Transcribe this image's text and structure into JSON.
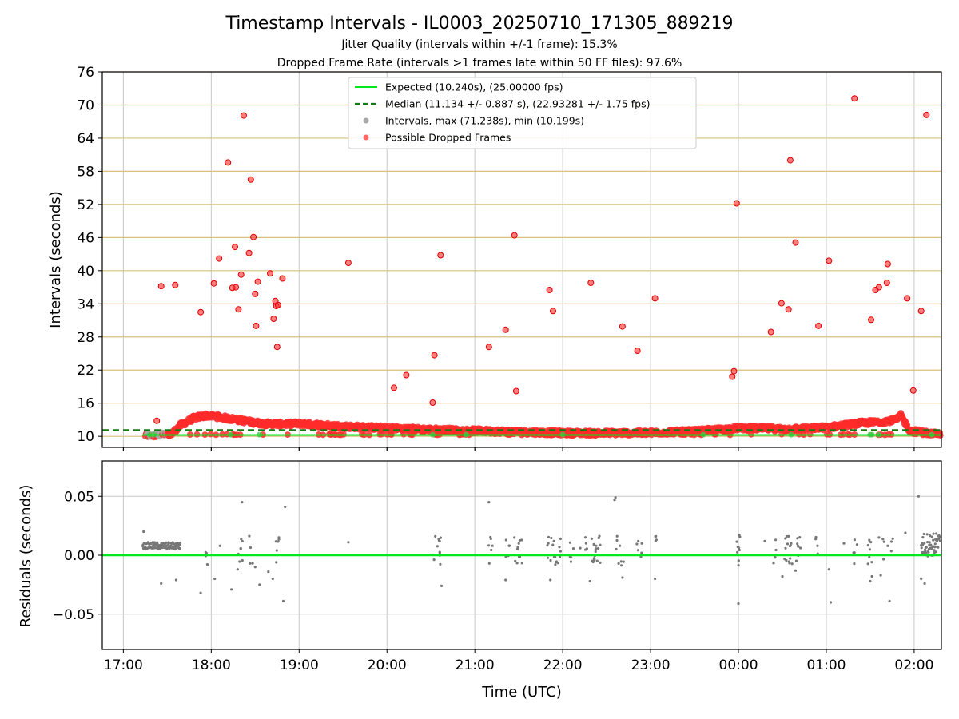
{
  "chart_data": [
    {
      "type": "scatter",
      "panel": "top",
      "title": "Timestamp Intervals - IL0003_20250710_171305_889219",
      "subtitle_1": "Jitter Quality (intervals within +/-1 frame): 15.3%",
      "subtitle_2": "Dropped Frame Rate (intervals >1 frames late within 50 FF files): 97.6%",
      "xlabel": "",
      "ylabel": "Intervals (seconds)",
      "xlim_hours": [
        16.76,
        26.31
      ],
      "ylim": [
        8,
        76
      ],
      "yticks": [
        10,
        16,
        22,
        28,
        34,
        40,
        46,
        52,
        58,
        64,
        70,
        76
      ],
      "xticks": [
        "17:00",
        "18:00",
        "19:00",
        "20:00",
        "21:00",
        "22:00",
        "23:00",
        "00:00",
        "01:00",
        "02:00"
      ],
      "grid": true,
      "legend_position": "upper-center",
      "legend": [
        "Expected (10.240s), (25.00000 fps)",
        "Median (11.134 +/- 0.887 s), (22.93281 +/- 1.75 fps)",
        "Intervals, max (71.238s), min (10.199s)",
        "Possible Dropped Frames"
      ],
      "expected_value": 10.24,
      "median_value": 11.134,
      "dropped_points_time_hours": [
        17.38,
        17.43,
        17.59,
        17.88,
        18.03,
        18.09,
        18.19,
        18.24,
        18.27,
        18.28,
        18.31,
        18.34,
        18.37,
        18.43,
        18.45,
        18.48,
        18.5,
        18.51,
        18.53,
        18.67,
        18.71,
        18.73,
        18.74,
        18.75,
        18.76,
        18.81,
        19.56,
        20.08,
        20.22,
        20.52,
        20.54,
        20.61,
        21.16,
        21.35,
        21.45,
        21.47,
        21.85,
        21.89,
        22.32,
        22.68,
        22.85,
        23.05,
        23.93,
        23.95,
        23.98,
        24.37,
        24.49,
        24.57,
        24.59,
        24.65,
        24.91,
        25.03,
        25.32,
        25.51,
        25.56,
        25.6,
        25.69,
        25.7,
        25.92,
        25.99,
        26.08,
        26.14
      ],
      "dropped_points_interval_s": [
        12.8,
        37.2,
        37.4,
        32.5,
        37.7,
        42.2,
        59.6,
        36.9,
        44.3,
        37.0,
        33.0,
        39.3,
        68.1,
        43.2,
        56.5,
        46.1,
        35.8,
        30.0,
        38.0,
        39.5,
        31.3,
        34.5,
        33.6,
        26.2,
        33.8,
        38.6,
        41.4,
        18.8,
        21.1,
        16.1,
        24.7,
        42.8,
        26.2,
        29.3,
        46.4,
        18.2,
        36.5,
        32.7,
        37.8,
        29.9,
        25.5,
        35.0,
        20.8,
        21.8,
        52.2,
        28.9,
        34.1,
        33.0,
        60.0,
        45.1,
        30.0,
        41.8,
        71.2,
        31.1,
        36.5,
        37.0,
        37.8,
        41.2,
        35.0,
        18.3,
        32.7,
        68.2
      ],
      "baseline_trend_time_hours": [
        17.25,
        17.45,
        17.55,
        17.65,
        17.8,
        17.95,
        18.1,
        18.2,
        18.3,
        18.45,
        18.6,
        18.8,
        19.0,
        19.5,
        20.0,
        20.5,
        21.0,
        21.5,
        22.0,
        22.5,
        23.0,
        23.5,
        23.8,
        24.0,
        24.3,
        24.6,
        25.0,
        25.2,
        25.4,
        25.6,
        25.8,
        25.85,
        25.95,
        26.3
      ],
      "baseline_trend_interval_s": [
        10.2,
        10.25,
        10.4,
        12.0,
        13.3,
        13.8,
        13.5,
        13.2,
        13.0,
        12.6,
        12.3,
        12.2,
        12.3,
        11.8,
        11.5,
        11.2,
        11.0,
        10.8,
        10.6,
        10.6,
        10.65,
        10.9,
        11.2,
        11.5,
        11.4,
        11.3,
        11.6,
        12.0,
        12.4,
        12.6,
        13.0,
        13.8,
        11.0,
        10.3
      ]
    },
    {
      "type": "scatter",
      "panel": "bottom",
      "xlabel": "Time (UTC)",
      "ylabel": "Residuals (seconds)",
      "xlim_hours": [
        16.76,
        26.31
      ],
      "ylim": [
        -0.08,
        0.08
      ],
      "yticks": [
        "0.05",
        "0.00",
        "−0.05"
      ],
      "ytick_values": [
        0.05,
        0.0,
        -0.05
      ],
      "grid": true,
      "zero_line": 0.0,
      "cluster_time_hours": [
        17.22,
        17.65
      ],
      "cluster_residual_s": 0.008,
      "points_time_hours": [
        17.23,
        17.43,
        17.6,
        17.88,
        18.04,
        18.1,
        18.23,
        18.3,
        18.35,
        18.5,
        18.55,
        18.65,
        18.7,
        18.74,
        18.77,
        18.82,
        18.84,
        19.56,
        20.55,
        20.6,
        20.62,
        21.16,
        21.2,
        21.35,
        21.45,
        21.5,
        21.86,
        21.9,
        22.2,
        22.31,
        22.33,
        22.38,
        22.59,
        22.6,
        22.65,
        22.68,
        22.86,
        22.9,
        23.05,
        23.06,
        24.0,
        24.01,
        24.3,
        24.5,
        24.55,
        24.6,
        24.65,
        24.9,
        25.03,
        25.05,
        25.2,
        25.35,
        25.5,
        25.52,
        25.6,
        25.62,
        25.7,
        25.72,
        25.9,
        26.05,
        26.08,
        26.12
      ],
      "points_residual_s": [
        0.02,
        -0.024,
        -0.021,
        -0.032,
        -0.02,
        0.008,
        -0.029,
        -0.012,
        0.045,
        -0.01,
        -0.025,
        -0.014,
        -0.02,
        -0.006,
        0.015,
        -0.039,
        0.041,
        0.011,
        0.016,
        0.012,
        -0.026,
        0.045,
        0.008,
        -0.021,
        0.015,
        0.01,
        -0.021,
        0.012,
        0.006,
        -0.022,
        0.014,
        0.008,
        0.047,
        0.049,
        0.008,
        -0.019,
        0.012,
        0.01,
        -0.02,
        0.016,
        -0.041,
        0.017,
        0.012,
        -0.018,
        0.016,
        0.01,
        -0.013,
        0.008,
        -0.012,
        -0.04,
        0.01,
        0.009,
        -0.022,
        -0.018,
        0.015,
        -0.017,
        0.008,
        -0.039,
        0.019,
        0.05,
        -0.02,
        -0.024
      ]
    }
  ],
  "colors": {
    "expected_line": "#00e81e",
    "median_line": "#147a14",
    "dropped_points": "#ff2a2a",
    "interval_points": "#aaaaaa",
    "residual_points": "#777777",
    "h_gridlines": "#d8c27a",
    "v_gridlines": "#c8c8c8"
  }
}
